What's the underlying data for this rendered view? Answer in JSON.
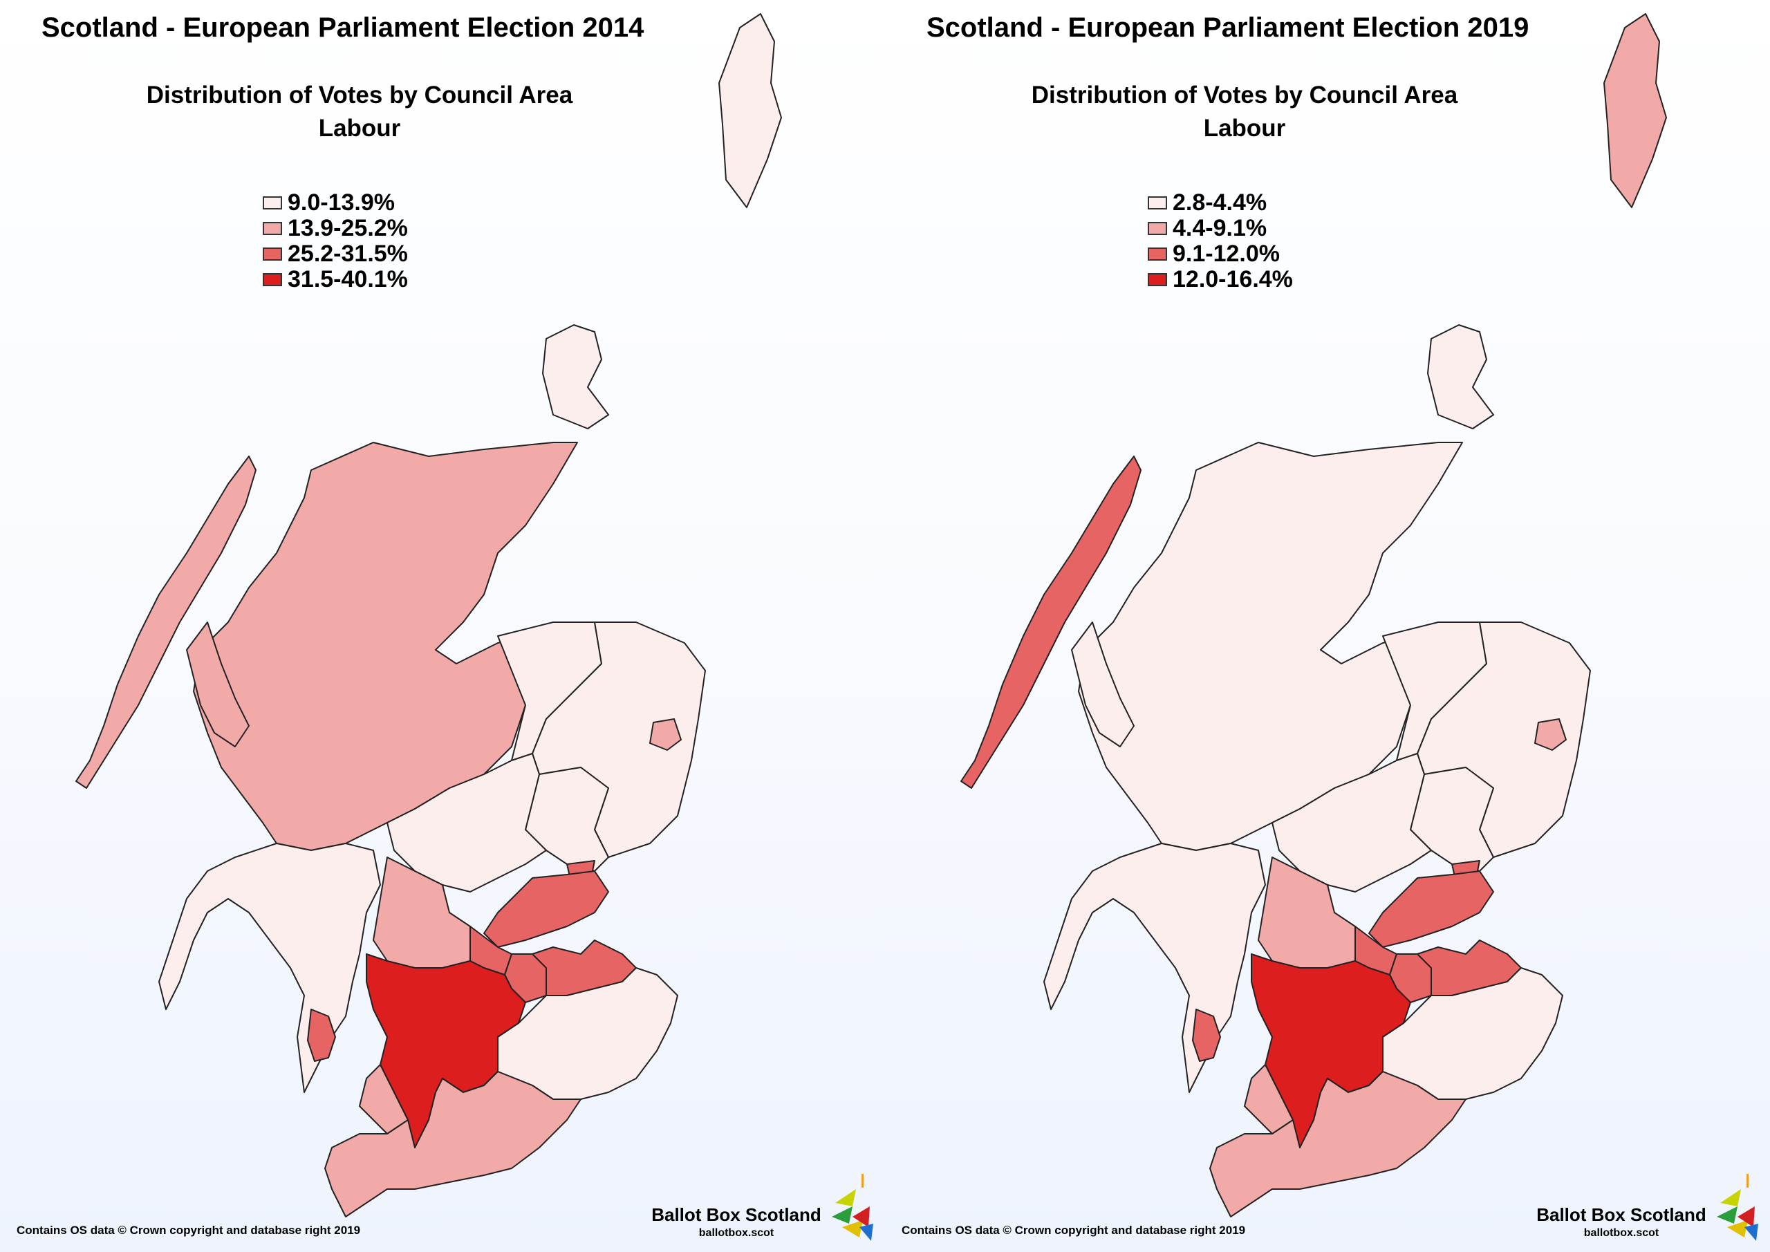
{
  "panels": [
    {
      "title": "Scotland - European Parliament Election 2014",
      "subtitle": "Distribution of Votes by Council Area",
      "party": "Labour",
      "legend": [
        {
          "label": "9.0-13.9%",
          "color": "#fdeeee"
        },
        {
          "label": "13.9-25.2%",
          "color": "#f2aaa9"
        },
        {
          "label": "25.2-31.5%",
          "color": "#e76464"
        },
        {
          "label": "31.5-40.1%",
          "color": "#dd1e1e"
        }
      ],
      "region_bins": {
        "highland": 1,
        "western-isles": 1,
        "aberdeenshire": 0,
        "aberdeen-city": 1,
        "moray": 0,
        "perth-kinross": 0,
        "angus": 0,
        "dundee": 2,
        "argyll-bute": 0,
        "stirling": 1,
        "fife": 2,
        "falkirk": 2,
        "west-lothian": 2,
        "edinburgh": 2,
        "central-belt": 3,
        "dumfries-galloway": 1,
        "south-ayrshire": 1,
        "borders": 0,
        "shetland": 0,
        "orkney": 0,
        "arran": 2
      },
      "credit": "Contains OS data © Crown copyright and database right 2019",
      "brand_name": "Ballot Box Scotland",
      "brand_url": "ballotbox.scot"
    },
    {
      "title": "Scotland - European Parliament Election 2019",
      "subtitle": "Distribution of Votes by Council Area",
      "party": "Labour",
      "legend": [
        {
          "label": "2.8-4.4%",
          "color": "#fdeeee"
        },
        {
          "label": "4.4-9.1%",
          "color": "#f2aaa9"
        },
        {
          "label": "9.1-12.0%",
          "color": "#e76464"
        },
        {
          "label": "12.0-16.4%",
          "color": "#dd1e1e"
        }
      ],
      "region_bins": {
        "highland": 0,
        "western-isles": 2,
        "aberdeenshire": 0,
        "aberdeen-city": 1,
        "moray": 0,
        "perth-kinross": 0,
        "angus": 0,
        "dundee": 2,
        "argyll-bute": 0,
        "stirling": 1,
        "fife": 2,
        "falkirk": 2,
        "west-lothian": 2,
        "edinburgh": 2,
        "central-belt": 3,
        "dumfries-galloway": 1,
        "south-ayrshire": 1,
        "borders": 0,
        "shetland": 1,
        "orkney": 0,
        "arran": 2
      },
      "credit": "Contains OS data © Crown copyright and database right 2019",
      "brand_name": "Ballot Box Scotland",
      "brand_url": "ballotbox.scot"
    }
  ],
  "icons": {
    "logo": "ballot-box-scotland-logo-icon"
  }
}
